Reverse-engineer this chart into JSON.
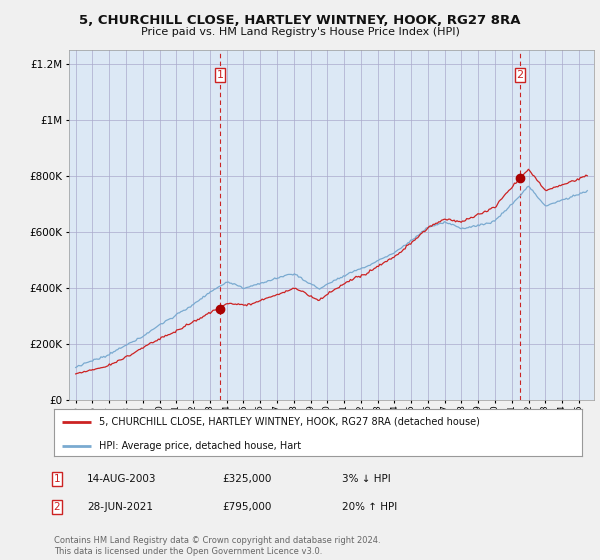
{
  "title1": "5, CHURCHILL CLOSE, HARTLEY WINTNEY, HOOK, RG27 8RA",
  "title2": "Price paid vs. HM Land Registry's House Price Index (HPI)",
  "legend_line1": "5, CHURCHILL CLOSE, HARTLEY WINTNEY, HOOK, RG27 8RA (detached house)",
  "legend_line2": "HPI: Average price, detached house, Hart",
  "sale1_label": "1",
  "sale1_date": "14-AUG-2003",
  "sale1_price": "£325,000",
  "sale1_hpi": "3% ↓ HPI",
  "sale1_year": 2003.62,
  "sale1_value": 325000,
  "sale2_label": "2",
  "sale2_date": "28-JUN-2021",
  "sale2_price": "£795,000",
  "sale2_hpi": "20% ↑ HPI",
  "sale2_year": 2021.49,
  "sale2_value": 795000,
  "background_color": "#f0f0f0",
  "plot_bg_color": "#dce8f5",
  "grid_color": "#aaaacc",
  "hpi_line_color": "#7aaad0",
  "price_line_color": "#cc2222",
  "marker_color": "#aa0000",
  "dashed_line_color": "#cc2222",
  "ylim_min": 0,
  "ylim_max": 1250000,
  "footnote": "Contains HM Land Registry data © Crown copyright and database right 2024.\nThis data is licensed under the Open Government Licence v3.0."
}
